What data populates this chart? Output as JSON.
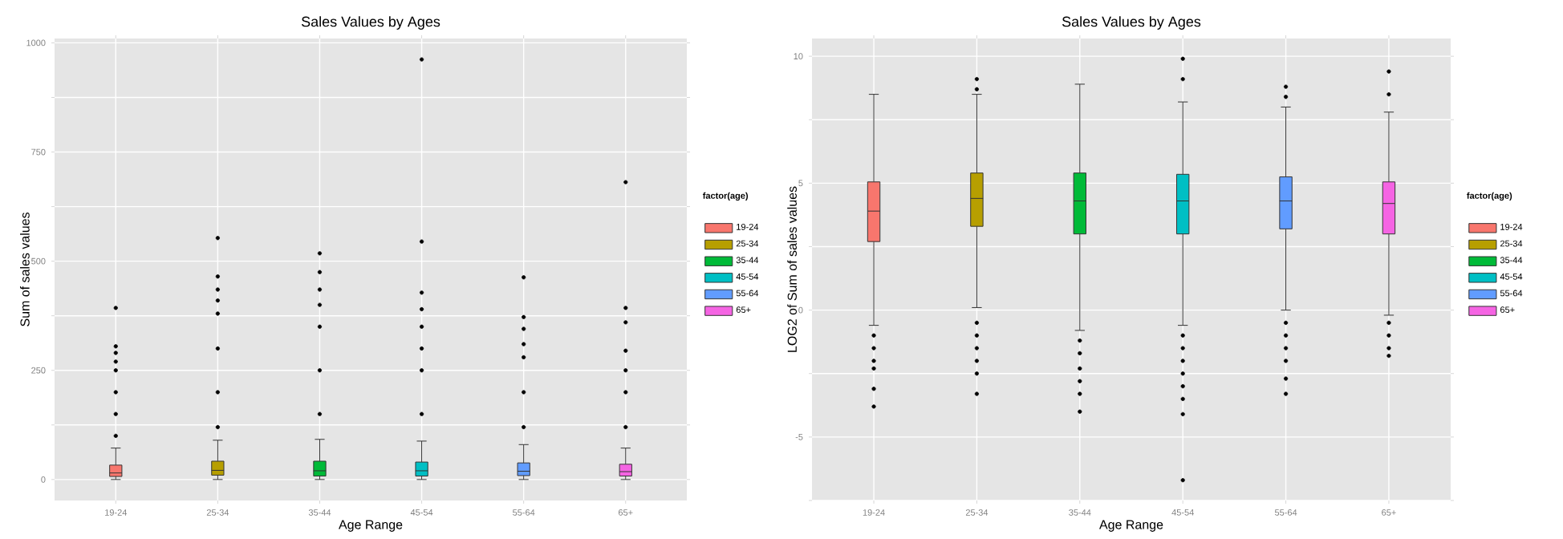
{
  "chart_data": [
    {
      "type": "box",
      "title": "Sales Values by Ages",
      "xlabel": "Age Range",
      "ylabel": "Sum of sales values",
      "legend_title": "factor(age)",
      "legend": "right",
      "grid": true,
      "categories": [
        "19-24",
        "25-34",
        "35-44",
        "45-54",
        "55-64",
        "65+"
      ],
      "ylim": [
        -48,
        1010
      ],
      "yticks": [
        0,
        {
          "value": 125,
          "label": null
        },
        250,
        {
          "value": 375,
          "label": null
        },
        500,
        {
          "value": 625,
          "label": null
        },
        750,
        {
          "value": 875,
          "label": null
        },
        1000
      ],
      "series": [
        {
          "name": "19-24",
          "color": "#F8766D",
          "boxes": [
            {
              "low": 0,
              "q1": 7,
              "median": 15,
              "q3": 33,
              "high": 72,
              "outliers": [
                100,
                150,
                200,
                250,
                270,
                290,
                305,
                393
              ]
            },
            null,
            null,
            null,
            null,
            null
          ]
        },
        {
          "name": "25-34",
          "color": "#B79F00",
          "boxes": [
            null,
            {
              "low": 0,
              "q1": 10,
              "median": 21,
              "q3": 42,
              "high": 90,
              "outliers": [
                120,
                200,
                300,
                380,
                410,
                435,
                465,
                553
              ]
            },
            null,
            null,
            null,
            null
          ]
        },
        {
          "name": "35-44",
          "color": "#00BA38",
          "boxes": [
            null,
            null,
            {
              "low": 0,
              "q1": 8,
              "median": 20,
              "q3": 42,
              "high": 92,
              "outliers": [
                150,
                250,
                350,
                400,
                435,
                475,
                518
              ]
            },
            null,
            null,
            null
          ]
        },
        {
          "name": "45-54",
          "color": "#00BFC4",
          "boxes": [
            null,
            null,
            null,
            {
              "low": 0,
              "q1": 8,
              "median": 20,
              "q3": 40,
              "high": 88,
              "outliers": [
                150,
                250,
                300,
                350,
                390,
                428,
                545,
                962
              ]
            },
            null,
            null
          ]
        },
        {
          "name": "55-64",
          "color": "#619CFF",
          "boxes": [
            null,
            null,
            null,
            null,
            {
              "low": 0,
              "q1": 9,
              "median": 19,
              "q3": 38,
              "high": 80,
              "outliers": [
                120,
                200,
                280,
                310,
                345,
                372,
                463
              ]
            },
            null
          ]
        },
        {
          "name": "65+",
          "color": "#F564E3",
          "boxes": [
            null,
            null,
            null,
            null,
            null,
            {
              "low": 0,
              "q1": 8,
              "median": 18,
              "q3": 35,
              "high": 72,
              "outliers": [
                120,
                200,
                250,
                295,
                360,
                393,
                681
              ]
            }
          ]
        }
      ]
    },
    {
      "type": "box",
      "title": "Sales Values by Ages",
      "xlabel": "Age Range",
      "ylabel": "LOG2 of Sum of sales values",
      "legend_title": "factor(age)",
      "legend": "right",
      "grid": true,
      "categories": [
        "19-24",
        "25-34",
        "35-44",
        "45-54",
        "55-64",
        "65+"
      ],
      "ylim": [
        -7.5,
        10.7
      ],
      "yticks": [
        {
          "value": -7.5,
          "label": null
        },
        -5,
        {
          "value": -2.5,
          "label": null
        },
        0,
        {
          "value": 2.5,
          "label": null
        },
        5,
        {
          "value": 7.5,
          "label": null
        },
        10
      ],
      "series": [
        {
          "name": "19-24",
          "color": "#F8766D",
          "boxes": [
            {
              "low": -0.6,
              "q1": 2.7,
              "median": 3.9,
              "q3": 5.05,
              "high": 8.5,
              "outliers": [
                -1.0,
                -1.5,
                -2.0,
                -2.3,
                -3.1,
                -3.8
              ]
            },
            null,
            null,
            null,
            null,
            null
          ]
        },
        {
          "name": "25-34",
          "color": "#B79F00",
          "boxes": [
            null,
            {
              "low": 0.1,
              "q1": 3.3,
              "median": 4.4,
              "q3": 5.4,
              "high": 8.5,
              "outliers": [
                8.7,
                9.1,
                -0.5,
                -1.0,
                -1.5,
                -2.0,
                -2.5,
                -3.3
              ]
            },
            null,
            null,
            null,
            null
          ]
        },
        {
          "name": "35-44",
          "color": "#00BA38",
          "boxes": [
            null,
            null,
            {
              "low": -0.8,
              "q1": 3.0,
              "median": 4.3,
              "q3": 5.4,
              "high": 8.9,
              "outliers": [
                -1.2,
                -1.7,
                -2.3,
                -2.8,
                -3.3,
                -4.0
              ]
            },
            null,
            null,
            null
          ]
        },
        {
          "name": "45-54",
          "color": "#00BFC4",
          "boxes": [
            null,
            null,
            null,
            {
              "low": -0.6,
              "q1": 3.0,
              "median": 4.3,
              "q3": 5.35,
              "high": 8.2,
              "outliers": [
                9.1,
                9.9,
                -1.0,
                -1.5,
                -2.0,
                -2.5,
                -3.0,
                -3.5,
                -4.1,
                -6.7
              ]
            },
            null,
            null
          ]
        },
        {
          "name": "55-64",
          "color": "#619CFF",
          "boxes": [
            null,
            null,
            null,
            null,
            {
              "low": 0.0,
              "q1": 3.2,
              "median": 4.3,
              "q3": 5.25,
              "high": 8.0,
              "outliers": [
                8.4,
                8.8,
                -0.5,
                -1.0,
                -1.5,
                -2.0,
                -2.7,
                -3.3
              ]
            },
            null
          ]
        },
        {
          "name": "65+",
          "color": "#F564E3",
          "boxes": [
            null,
            null,
            null,
            null,
            null,
            {
              "low": -0.2,
              "q1": 3.0,
              "median": 4.2,
              "q3": 5.05,
              "high": 7.8,
              "outliers": [
                8.5,
                9.4,
                -0.5,
                -1.0,
                -1.5,
                -1.8
              ]
            }
          ]
        }
      ]
    }
  ]
}
